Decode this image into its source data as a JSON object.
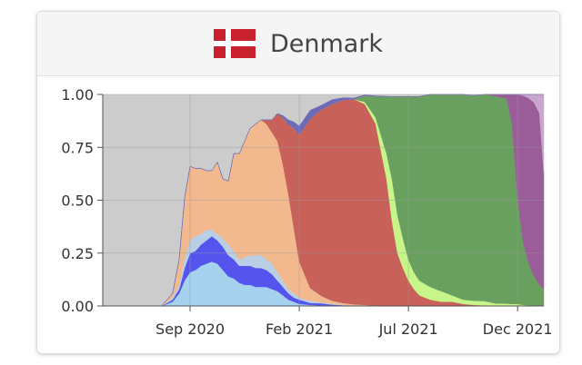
{
  "header": {
    "title": "Denmark",
    "flag_icon": "denmark-flag-icon"
  },
  "colors": {
    "flag_red": "#c8202f",
    "flag_white": "#ffffff",
    "plot_background": "#cccccc",
    "gridline": "#999999"
  },
  "chart_data": {
    "type": "area",
    "stacked": true,
    "normalized": true,
    "title": "Denmark",
    "xlabel": "",
    "ylabel": "",
    "x_unit": "months since 2020-05-01",
    "xlim": [
      0,
      20.2
    ],
    "ylim": [
      0,
      1
    ],
    "xticks": [
      {
        "value": 4,
        "label": "Sep 2020"
      },
      {
        "value": 9,
        "label": "Feb 2021"
      },
      {
        "value": 14,
        "label": "Jul 2021"
      },
      {
        "value": 19,
        "label": "Dec 2021"
      }
    ],
    "yticks": [
      {
        "value": 0,
        "label": "0.00"
      },
      {
        "value": 0.25,
        "label": "0.25"
      },
      {
        "value": 0.5,
        "label": "0.50"
      },
      {
        "value": 0.75,
        "label": "0.75"
      },
      {
        "value": 1,
        "label": "1.00"
      }
    ],
    "grid": true,
    "legend": "none",
    "x": [
      2.7,
      3.2,
      3.5,
      3.75,
      4.0,
      4.25,
      4.5,
      4.75,
      5.0,
      5.25,
      5.5,
      5.75,
      6.0,
      6.25,
      6.5,
      6.75,
      7.0,
      7.25,
      7.5,
      7.75,
      8.0,
      8.25,
      8.5,
      8.75,
      9.0,
      9.5,
      10.0,
      10.5,
      11.0,
      11.5,
      12.0,
      12.5,
      13.0,
      13.25,
      13.5,
      13.75,
      14.0,
      14.25,
      14.5,
      15.0,
      15.5,
      16.0,
      16.5,
      17.0,
      17.5,
      18.0,
      18.5,
      18.75,
      19.0,
      19.25,
      19.5,
      19.75,
      20.0,
      20.2
    ],
    "series": [
      {
        "color": "#a6d2ef",
        "values": [
          0,
          0.02,
          0.06,
          0.12,
          0.16,
          0.17,
          0.19,
          0.2,
          0.21,
          0.2,
          0.17,
          0.14,
          0.13,
          0.11,
          0.1,
          0.1,
          0.09,
          0.09,
          0.09,
          0.08,
          0.07,
          0.05,
          0.03,
          0.02,
          0.01,
          0.005,
          0.003,
          0.002,
          0.001,
          0.001,
          0.001,
          0,
          0,
          0,
          0,
          0,
          0,
          0,
          0,
          0,
          0,
          0,
          0,
          0,
          0,
          0,
          0,
          0,
          0,
          0,
          0,
          0,
          0,
          0
        ]
      },
      {
        "color": "#5555ee",
        "values": [
          0,
          0.01,
          0.02,
          0.06,
          0.09,
          0.09,
          0.1,
          0.11,
          0.12,
          0.11,
          0.11,
          0.1,
          0.09,
          0.08,
          0.09,
          0.09,
          0.09,
          0.09,
          0.08,
          0.07,
          0.05,
          0.04,
          0.03,
          0.02,
          0.02,
          0.01,
          0.01,
          0.005,
          0.003,
          0.002,
          0.001,
          0,
          0,
          0,
          0,
          0,
          0,
          0,
          0,
          0,
          0,
          0,
          0,
          0,
          0,
          0,
          0,
          0,
          0,
          0,
          0,
          0,
          0,
          0
        ]
      },
      {
        "color": "#b8cfe6",
        "values": [
          0,
          0.01,
          0.02,
          0.05,
          0.06,
          0.07,
          0.05,
          0.05,
          0.03,
          0.03,
          0.04,
          0.05,
          0.04,
          0.03,
          0.04,
          0.05,
          0.06,
          0.06,
          0.05,
          0.05,
          0.04,
          0.03,
          0.02,
          0.02,
          0.01,
          0.01,
          0.005,
          0.003,
          0.002,
          0.001,
          0.001,
          0,
          0,
          0,
          0,
          0,
          0,
          0,
          0,
          0,
          0,
          0,
          0,
          0,
          0,
          0,
          0,
          0,
          0,
          0,
          0,
          0,
          0,
          0
        ]
      },
      {
        "color": "#f2b98e",
        "values": [
          0,
          0.02,
          0.12,
          0.28,
          0.35,
          0.32,
          0.31,
          0.28,
          0.28,
          0.34,
          0.28,
          0.3,
          0.46,
          0.5,
          0.55,
          0.6,
          0.62,
          0.64,
          0.64,
          0.62,
          0.62,
          0.55,
          0.45,
          0.31,
          0.17,
          0.06,
          0.03,
          0.015,
          0.008,
          0.004,
          0.002,
          0.001,
          0,
          0,
          0,
          0,
          0,
          0,
          0,
          0,
          0,
          0,
          0,
          0,
          0,
          0,
          0,
          0,
          0,
          0,
          0,
          0,
          0,
          0
        ]
      },
      {
        "color": "#c7615a",
        "values": [
          0,
          0,
          0,
          0,
          0,
          0,
          0,
          0,
          0,
          0,
          0,
          0,
          0,
          0,
          0,
          0,
          0,
          0,
          0.02,
          0.06,
          0.13,
          0.22,
          0.33,
          0.47,
          0.6,
          0.8,
          0.88,
          0.93,
          0.96,
          0.97,
          0.95,
          0.86,
          0.6,
          0.4,
          0.25,
          0.18,
          0.12,
          0.08,
          0.05,
          0.03,
          0.02,
          0.02,
          0.01,
          0.005,
          0.003,
          0.002,
          0.001,
          0,
          0,
          0,
          0,
          0,
          0,
          0
        ]
      },
      {
        "color": "#c7f589",
        "values": [
          0,
          0,
          0,
          0,
          0,
          0,
          0,
          0,
          0,
          0,
          0,
          0,
          0,
          0,
          0,
          0,
          0,
          0,
          0,
          0,
          0,
          0,
          0,
          0,
          0,
          0,
          0,
          0,
          0,
          0,
          0.01,
          0.03,
          0.12,
          0.2,
          0.18,
          0.14,
          0.1,
          0.08,
          0.07,
          0.06,
          0.05,
          0.03,
          0.02,
          0.02,
          0.02,
          0.01,
          0.01,
          0.01,
          0.01,
          0.005,
          0.003,
          0.002,
          0.001,
          0
        ]
      },
      {
        "color": "#6aa05f",
        "values": [
          0,
          0,
          0,
          0,
          0,
          0,
          0,
          0,
          0,
          0,
          0,
          0,
          0,
          0,
          0,
          0,
          0,
          0,
          0,
          0,
          0,
          0,
          0,
          0,
          0,
          0,
          0,
          0,
          0,
          0,
          0.03,
          0.1,
          0.27,
          0.39,
          0.56,
          0.67,
          0.77,
          0.83,
          0.87,
          0.91,
          0.93,
          0.95,
          0.97,
          0.97,
          0.98,
          0.98,
          0.97,
          0.85,
          0.5,
          0.3,
          0.2,
          0.14,
          0.1,
          0.08
        ]
      },
      {
        "color": "#9b5c9a",
        "values": [
          0,
          0,
          0,
          0,
          0,
          0,
          0,
          0,
          0,
          0,
          0,
          0,
          0,
          0,
          0,
          0,
          0,
          0,
          0,
          0,
          0,
          0,
          0,
          0,
          0,
          0,
          0,
          0,
          0,
          0,
          0,
          0,
          0,
          0,
          0,
          0,
          0,
          0,
          0,
          0,
          0,
          0,
          0,
          0,
          0,
          0.01,
          0.02,
          0.14,
          0.49,
          0.69,
          0.78,
          0.82,
          0.81,
          0.55
        ]
      },
      {
        "color": "#c9a6cc",
        "values": [
          0,
          0,
          0,
          0,
          0,
          0,
          0,
          0,
          0,
          0,
          0,
          0,
          0,
          0,
          0,
          0,
          0,
          0,
          0,
          0,
          0,
          0,
          0,
          0,
          0,
          0,
          0,
          0,
          0,
          0,
          0,
          0,
          0,
          0,
          0,
          0,
          0,
          0,
          0,
          0,
          0,
          0,
          0,
          0,
          0,
          0,
          0,
          0,
          0,
          0.01,
          0.02,
          0.04,
          0.09,
          0.37
        ]
      },
      {
        "color": "#6b6bb8",
        "values": [
          0,
          0,
          0,
          0,
          0,
          0,
          0,
          0,
          0,
          0,
          0,
          0,
          0,
          0,
          0,
          0,
          0,
          0,
          0,
          0,
          0,
          0.01,
          0.02,
          0.03,
          0.04,
          0.04,
          0.02,
          0.02,
          0.01,
          0.005,
          0.003,
          0.002,
          0.001,
          0,
          0,
          0,
          0,
          0,
          0,
          0,
          0,
          0,
          0,
          0,
          0,
          0,
          0,
          0,
          0,
          0,
          0,
          0,
          0,
          0
        ]
      }
    ]
  }
}
